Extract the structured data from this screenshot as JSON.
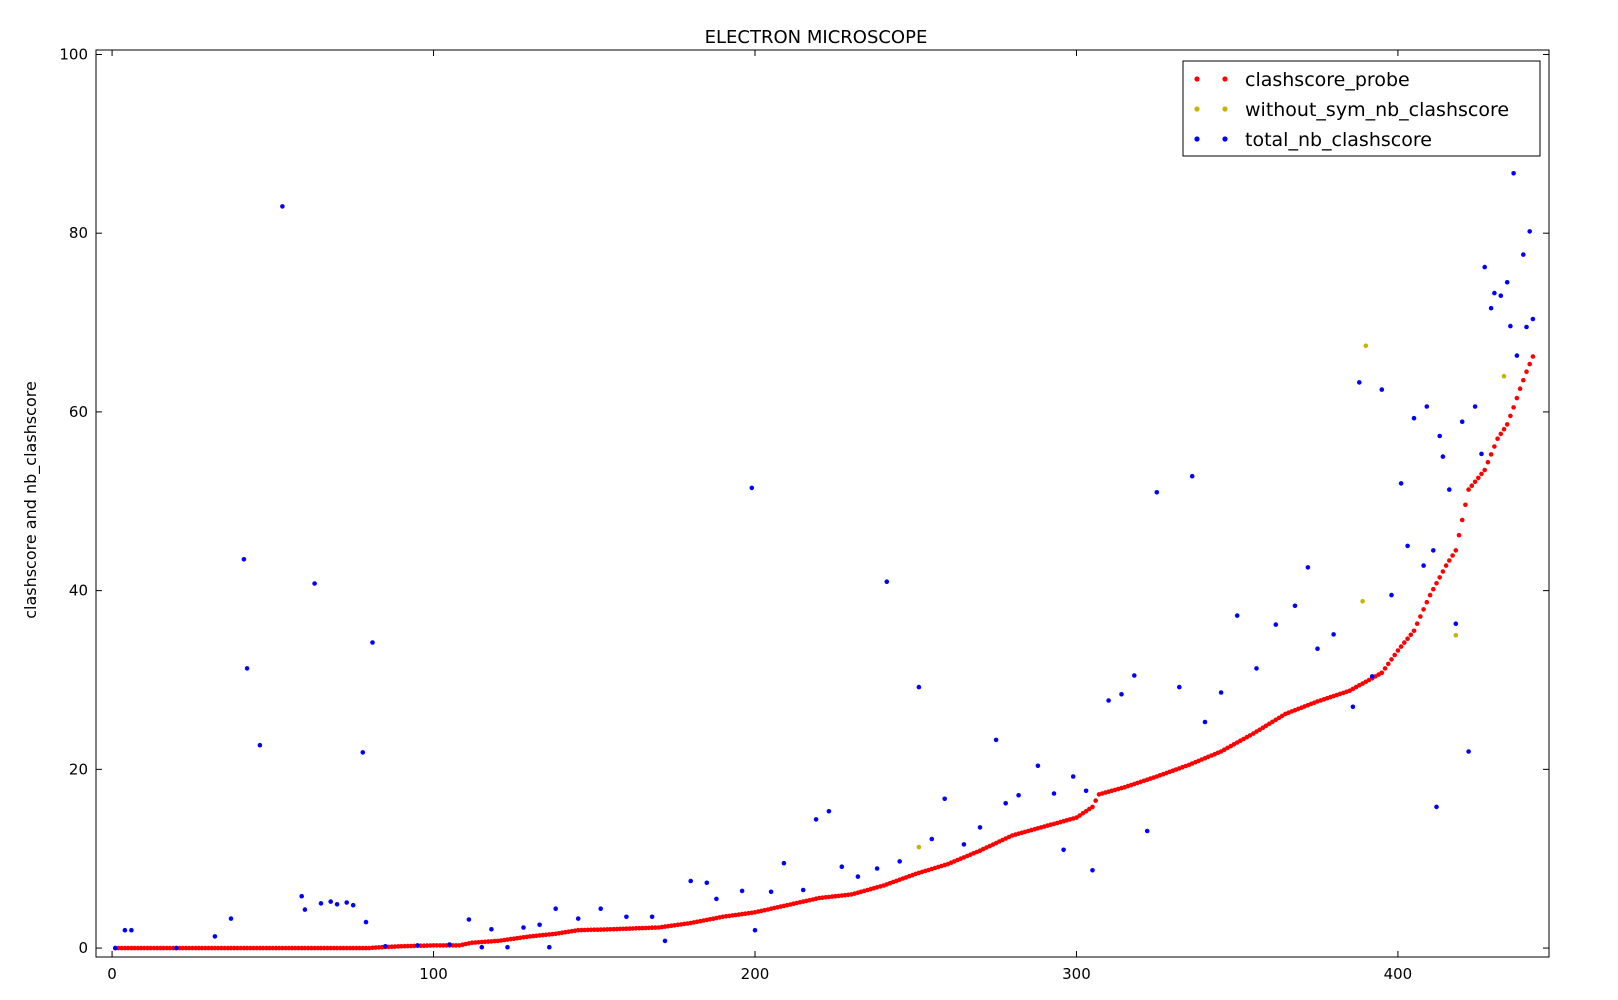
{
  "chart_data": {
    "type": "scatter",
    "title": "ELECTRON MICROSCOPE",
    "xlabel": "",
    "ylabel": "clashscore and nb_clashscore",
    "xlim": [
      -5,
      447
    ],
    "ylim": [
      -1,
      100.5
    ],
    "xticks": [
      0,
      100,
      200,
      300,
      400
    ],
    "yticks": [
      0,
      20,
      40,
      60,
      80,
      100
    ],
    "grid": false,
    "legend_position": "top-right",
    "colors": {
      "clashscore_probe": "#ff0000",
      "without_sym_nb_clashscore": "#c8b400",
      "total_nb_clashscore": "#0000ff"
    },
    "series": [
      {
        "name": "clashscore_probe",
        "color": "#ff0000",
        "points": [
          [
            1,
            0
          ],
          [
            20,
            0
          ],
          [
            40,
            0
          ],
          [
            60,
            0
          ],
          [
            80,
            0
          ],
          [
            84,
            0.1
          ],
          [
            90,
            0.2
          ],
          [
            100,
            0.3
          ],
          [
            108,
            0.3
          ],
          [
            112,
            0.6
          ],
          [
            120,
            0.8
          ],
          [
            130,
            1.3
          ],
          [
            138,
            1.6
          ],
          [
            145,
            2.0
          ],
          [
            155,
            2.1
          ],
          [
            170,
            2.3
          ],
          [
            180,
            2.8
          ],
          [
            190,
            3.5
          ],
          [
            200,
            4.0
          ],
          [
            210,
            4.8
          ],
          [
            220,
            5.6
          ],
          [
            230,
            6.0
          ],
          [
            240,
            7.0
          ],
          [
            250,
            8.3
          ],
          [
            260,
            9.4
          ],
          [
            270,
            10.9
          ],
          [
            280,
            12.6
          ],
          [
            290,
            13.6
          ],
          [
            300,
            14.6
          ],
          [
            305,
            15.8
          ],
          [
            307,
            17.2
          ],
          [
            315,
            18.0
          ],
          [
            325,
            19.2
          ],
          [
            335,
            20.5
          ],
          [
            345,
            22.0
          ],
          [
            355,
            24.0
          ],
          [
            365,
            26.2
          ],
          [
            375,
            27.6
          ],
          [
            385,
            28.8
          ],
          [
            395,
            30.8
          ],
          [
            400,
            33.3
          ],
          [
            405,
            35.5
          ],
          [
            410,
            39.5
          ],
          [
            415,
            42.8
          ],
          [
            418,
            44.5
          ],
          [
            422,
            51.3
          ],
          [
            427,
            53.5
          ],
          [
            431,
            57.0
          ],
          [
            434,
            58.6
          ],
          [
            436,
            60.5
          ],
          [
            438,
            62.6
          ],
          [
            440,
            64.5
          ],
          [
            442,
            66.2
          ]
        ]
      },
      {
        "name": "without_sym_nb_clashscore",
        "color": "#c8b400",
        "points": [
          [
            251,
            11.3
          ],
          [
            389,
            38.8
          ],
          [
            390,
            67.4
          ],
          [
            418,
            35.0
          ],
          [
            433,
            64.0
          ]
        ]
      },
      {
        "name": "total_nb_clashscore",
        "color": "#0000ff",
        "points": [
          [
            1,
            0
          ],
          [
            4,
            2.0
          ],
          [
            6,
            2.0
          ],
          [
            20,
            0
          ],
          [
            32,
            1.3
          ],
          [
            37,
            3.3
          ],
          [
            41,
            43.5
          ],
          [
            42,
            31.3
          ],
          [
            46,
            22.7
          ],
          [
            53,
            83.0
          ],
          [
            59,
            5.8
          ],
          [
            60,
            4.3
          ],
          [
            63,
            40.8
          ],
          [
            65,
            5.0
          ],
          [
            68,
            5.2
          ],
          [
            70,
            4.9
          ],
          [
            73,
            5.1
          ],
          [
            75,
            4.8
          ],
          [
            78,
            21.9
          ],
          [
            79,
            2.9
          ],
          [
            81,
            34.2
          ],
          [
            85,
            0.2
          ],
          [
            95,
            0.3
          ],
          [
            105,
            0.4
          ],
          [
            111,
            3.2
          ],
          [
            115,
            0.1
          ],
          [
            118,
            2.1
          ],
          [
            123,
            0.1
          ],
          [
            128,
            2.3
          ],
          [
            133,
            2.6
          ],
          [
            136,
            0.1
          ],
          [
            138,
            4.4
          ],
          [
            145,
            3.3
          ],
          [
            152,
            4.4
          ],
          [
            160,
            3.5
          ],
          [
            168,
            3.5
          ],
          [
            172,
            0.8
          ],
          [
            180,
            7.5
          ],
          [
            185,
            7.3
          ],
          [
            188,
            5.5
          ],
          [
            196,
            6.4
          ],
          [
            199,
            51.5
          ],
          [
            200,
            2.0
          ],
          [
            205,
            6.3
          ],
          [
            209,
            9.5
          ],
          [
            215,
            6.5
          ],
          [
            219,
            14.4
          ],
          [
            223,
            15.3
          ],
          [
            227,
            9.1
          ],
          [
            232,
            8.0
          ],
          [
            238,
            8.9
          ],
          [
            241,
            41.0
          ],
          [
            245,
            9.7
          ],
          [
            251,
            29.2
          ],
          [
            255,
            12.2
          ],
          [
            259,
            16.7
          ],
          [
            265,
            11.6
          ],
          [
            270,
            13.5
          ],
          [
            275,
            23.3
          ],
          [
            278,
            16.2
          ],
          [
            282,
            17.1
          ],
          [
            288,
            20.4
          ],
          [
            293,
            17.3
          ],
          [
            296,
            11.0
          ],
          [
            299,
            19.2
          ],
          [
            303,
            17.6
          ],
          [
            305,
            8.7
          ],
          [
            310,
            27.7
          ],
          [
            314,
            28.4
          ],
          [
            318,
            30.5
          ],
          [
            322,
            13.1
          ],
          [
            325,
            51.0
          ],
          [
            332,
            29.2
          ],
          [
            336,
            52.8
          ],
          [
            340,
            25.3
          ],
          [
            345,
            28.6
          ],
          [
            350,
            37.2
          ],
          [
            356,
            31.3
          ],
          [
            362,
            36.2
          ],
          [
            368,
            38.3
          ],
          [
            372,
            42.6
          ],
          [
            375,
            33.5
          ],
          [
            380,
            35.1
          ],
          [
            386,
            27.0
          ],
          [
            388,
            63.3
          ],
          [
            392,
            30.4
          ],
          [
            395,
            62.5
          ],
          [
            398,
            39.5
          ],
          [
            401,
            52.0
          ],
          [
            403,
            45.0
          ],
          [
            405,
            59.3
          ],
          [
            408,
            42.8
          ],
          [
            409,
            60.6
          ],
          [
            411,
            44.5
          ],
          [
            412,
            15.8
          ],
          [
            413,
            57.3
          ],
          [
            414,
            55.0
          ],
          [
            416,
            51.3
          ],
          [
            418,
            36.3
          ],
          [
            420,
            58.9
          ],
          [
            422,
            22.0
          ],
          [
            424,
            60.6
          ],
          [
            426,
            55.3
          ],
          [
            427,
            76.2
          ],
          [
            429,
            71.6
          ],
          [
            430,
            73.3
          ],
          [
            432,
            73.0
          ],
          [
            434,
            74.5
          ],
          [
            435,
            69.6
          ],
          [
            436,
            86.7
          ],
          [
            437,
            66.3
          ],
          [
            439,
            77.6
          ],
          [
            440,
            69.5
          ],
          [
            441,
            80.2
          ],
          [
            442,
            70.4
          ]
        ]
      }
    ]
  }
}
